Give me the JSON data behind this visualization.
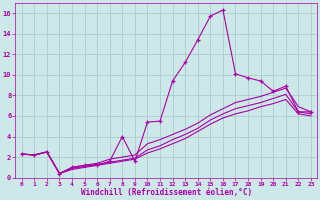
{
  "title": "",
  "xlabel": "Windchill (Refroidissement éolien,°C)",
  "ylabel": "",
  "xlim": [
    -0.5,
    23.5
  ],
  "ylim": [
    0,
    17
  ],
  "xticks": [
    0,
    1,
    2,
    3,
    4,
    5,
    6,
    7,
    8,
    9,
    10,
    11,
    12,
    13,
    14,
    15,
    16,
    17,
    18,
    19,
    20,
    21,
    22,
    23
  ],
  "yticks": [
    0,
    2,
    4,
    6,
    8,
    10,
    12,
    14,
    16
  ],
  "background_color": "#cce8e8",
  "grid_color": "#aacccc",
  "line_color": "#aa00aa",
  "curve1_x": [
    0,
    1,
    2,
    3,
    4,
    5,
    6,
    7,
    8,
    9,
    10,
    11,
    12,
    13,
    14,
    15,
    16,
    17,
    18,
    19,
    20,
    21,
    22,
    23
  ],
  "curve1_y": [
    2.3,
    2.2,
    2.5,
    0.4,
    1.0,
    1.2,
    1.2,
    1.6,
    4.0,
    1.6,
    5.4,
    5.5,
    9.4,
    11.2,
    13.4,
    15.7,
    16.3,
    10.1,
    9.7,
    9.4,
    8.4,
    8.9,
    6.4,
    6.4
  ],
  "curve2_x": [
    0,
    1,
    2,
    3,
    4,
    5,
    6,
    7,
    8,
    9,
    10,
    11,
    12,
    13,
    14,
    15,
    16,
    17,
    18,
    19,
    20,
    21,
    22,
    23
  ],
  "curve2_y": [
    2.3,
    2.2,
    2.5,
    0.4,
    1.0,
    1.2,
    1.4,
    1.8,
    2.0,
    2.2,
    3.3,
    3.7,
    4.2,
    4.7,
    5.3,
    6.1,
    6.7,
    7.3,
    7.6,
    7.9,
    8.3,
    8.7,
    6.9,
    6.4
  ],
  "curve3_x": [
    0,
    1,
    2,
    3,
    4,
    5,
    6,
    7,
    8,
    9,
    10,
    11,
    12,
    13,
    14,
    15,
    16,
    17,
    18,
    19,
    20,
    21,
    22,
    23
  ],
  "curve3_y": [
    2.3,
    2.2,
    2.5,
    0.4,
    0.9,
    1.1,
    1.3,
    1.5,
    1.7,
    1.9,
    2.7,
    3.1,
    3.7,
    4.2,
    4.8,
    5.6,
    6.2,
    6.7,
    7.0,
    7.3,
    7.7,
    8.1,
    6.4,
    6.2
  ],
  "curve4_x": [
    0,
    1,
    2,
    3,
    4,
    5,
    6,
    7,
    8,
    9,
    10,
    11,
    12,
    13,
    14,
    15,
    16,
    17,
    18,
    19,
    20,
    21,
    22,
    23
  ],
  "curve4_y": [
    2.3,
    2.2,
    2.5,
    0.4,
    0.8,
    1.0,
    1.2,
    1.4,
    1.6,
    1.8,
    2.4,
    2.8,
    3.3,
    3.8,
    4.5,
    5.2,
    5.8,
    6.2,
    6.5,
    6.9,
    7.2,
    7.6,
    6.2,
    6.0
  ]
}
